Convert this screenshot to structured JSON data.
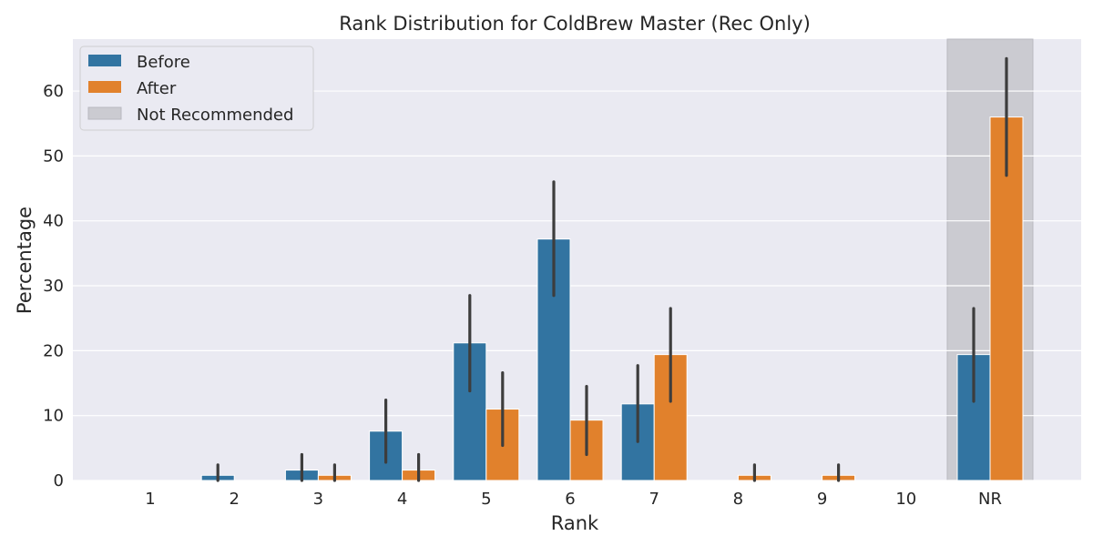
{
  "chart_data": {
    "type": "bar",
    "title": "Rank Distribution for ColdBrew Master (Rec Only)",
    "xlabel": "Rank",
    "ylabel": "Percentage",
    "categories": [
      "1",
      "2",
      "3",
      "4",
      "5",
      "6",
      "7",
      "8",
      "9",
      "10",
      "NR"
    ],
    "ylim": [
      0,
      68
    ],
    "yticks": [
      0,
      10,
      20,
      30,
      40,
      50,
      60
    ],
    "grid": true,
    "legend_position": "top-left",
    "highlight": {
      "category": "NR",
      "label": "Not Recommended",
      "color": "#cbcbd1"
    },
    "series": [
      {
        "name": "Before",
        "color": "#3274a1",
        "values": [
          0,
          0.8,
          1.6,
          7.6,
          21.2,
          37.2,
          11.8,
          0,
          0,
          0,
          19.4
        ],
        "ci_low": [
          0,
          0,
          0,
          2.8,
          13.8,
          28.5,
          6.0,
          0,
          0,
          0,
          12.2
        ],
        "ci_high": [
          0,
          2.4,
          4.0,
          12.4,
          28.5,
          46.0,
          17.7,
          0,
          0,
          0,
          26.5
        ]
      },
      {
        "name": "After",
        "color": "#e1812c",
        "values": [
          0,
          0,
          0.8,
          1.6,
          11.0,
          9.3,
          19.4,
          0.8,
          0.8,
          0,
          56.0
        ],
        "ci_low": [
          0,
          0,
          0,
          0,
          5.4,
          4.0,
          12.2,
          0,
          0,
          0,
          47.0
        ],
        "ci_high": [
          0,
          0,
          2.4,
          4.0,
          16.6,
          14.5,
          26.5,
          2.4,
          2.4,
          0,
          65.0
        ]
      }
    ]
  }
}
